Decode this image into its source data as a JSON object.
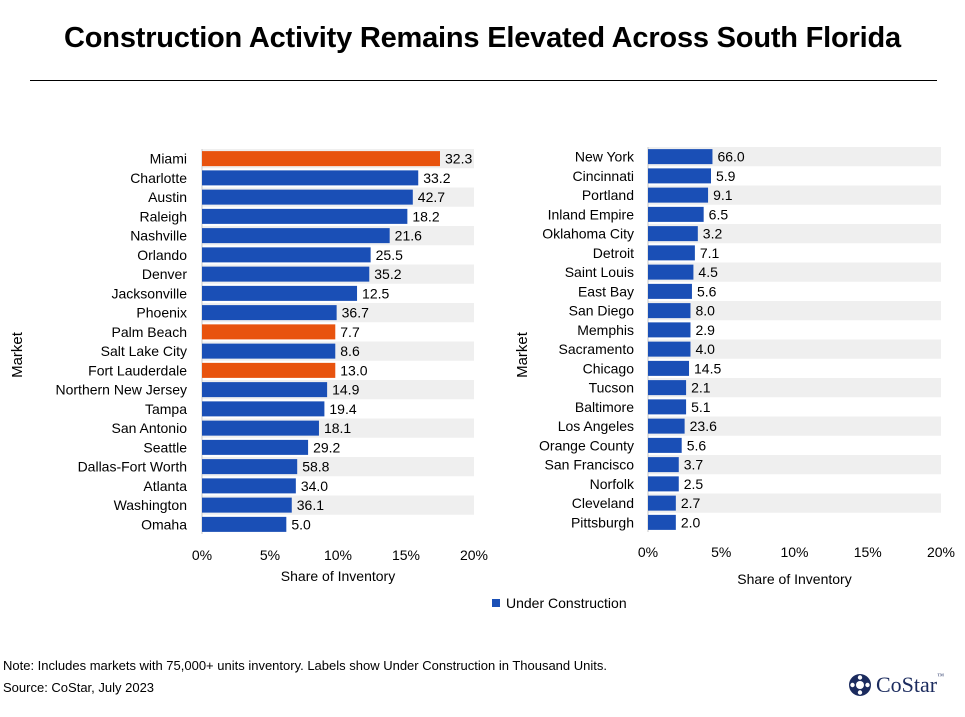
{
  "title": "Construction Activity Remains Elevated Across South Florida",
  "legend": {
    "label": "Under Construction",
    "color": "#1a4fb6"
  },
  "note": "Note: Includes markets with 75,000+ units inventory. Labels show Under Construction in Thousand Units.",
  "source": "Source: CoStar, July 2023",
  "logo": {
    "text": "CoStar",
    "tm": "™"
  },
  "colors": {
    "bar": "#1a4fb6",
    "highlight": "#e8530e",
    "band": "#efefef"
  },
  "chart_data": [
    {
      "type": "bar",
      "orientation": "horizontal",
      "xlabel": "Share of Inventory",
      "ylabel": "Market",
      "xlim": [
        0,
        20
      ],
      "xticks": [
        "0%",
        "5%",
        "10%",
        "15%",
        "20%"
      ],
      "categories": [
        "Miami",
        "Charlotte",
        "Austin",
        "Raleigh",
        "Nashville",
        "Orlando",
        "Denver",
        "Jacksonville",
        "Phoenix",
        "Palm Beach",
        "Salt Lake City",
        "Fort Lauderdale",
        "Northern New Jersey",
        "Tampa",
        "San Antonio",
        "Seattle",
        "Dallas-Fort Worth",
        "Atlanta",
        "Washington",
        "Omaha"
      ],
      "values": [
        17.5,
        15.9,
        15.5,
        15.1,
        13.8,
        12.4,
        12.3,
        11.4,
        9.9,
        9.8,
        9.8,
        9.8,
        9.2,
        9.0,
        8.6,
        7.8,
        7.0,
        6.9,
        6.6,
        6.2
      ],
      "labels": [
        "32.3",
        "33.2",
        "42.7",
        "18.2",
        "21.6",
        "25.5",
        "35.2",
        "12.5",
        "36.7",
        "7.7",
        "8.6",
        "13.0",
        "14.9",
        "19.4",
        "18.1",
        "29.2",
        "58.8",
        "34.0",
        "36.1",
        "5.0"
      ],
      "highlight": [
        "Miami",
        "Palm Beach",
        "Fort Lauderdale"
      ],
      "series": [
        {
          "name": "Under Construction"
        }
      ]
    },
    {
      "type": "bar",
      "orientation": "horizontal",
      "xlabel": "Share of Inventory",
      "ylabel": "Market",
      "xlim": [
        0,
        20
      ],
      "xticks": [
        "0%",
        "5%",
        "10%",
        "15%",
        "20%"
      ],
      "categories": [
        "New York",
        "Cincinnati",
        "Portland",
        "Inland Empire",
        "Oklahoma City",
        "Detroit",
        "Saint Louis",
        "East Bay",
        "San Diego",
        "Memphis",
        "Sacramento",
        "Chicago",
        "Tucson",
        "Baltimore",
        "Los Angeles",
        "Orange County",
        "San Francisco",
        "Norfolk",
        "Cleveland",
        "Pittsburgh"
      ],
      "values": [
        4.4,
        4.3,
        4.1,
        3.8,
        3.4,
        3.2,
        3.1,
        3.0,
        2.9,
        2.9,
        2.9,
        2.8,
        2.6,
        2.6,
        2.5,
        2.3,
        2.1,
        2.1,
        1.9,
        1.9
      ],
      "labels": [
        "66.0",
        "5.9",
        "9.1",
        "6.5",
        "3.2",
        "7.1",
        "4.5",
        "5.6",
        "8.0",
        "2.9",
        "4.0",
        "14.5",
        "2.1",
        "5.1",
        "23.6",
        "5.6",
        "3.7",
        "2.5",
        "2.7",
        "2.0"
      ],
      "highlight": [],
      "series": [
        {
          "name": "Under Construction"
        }
      ]
    }
  ]
}
